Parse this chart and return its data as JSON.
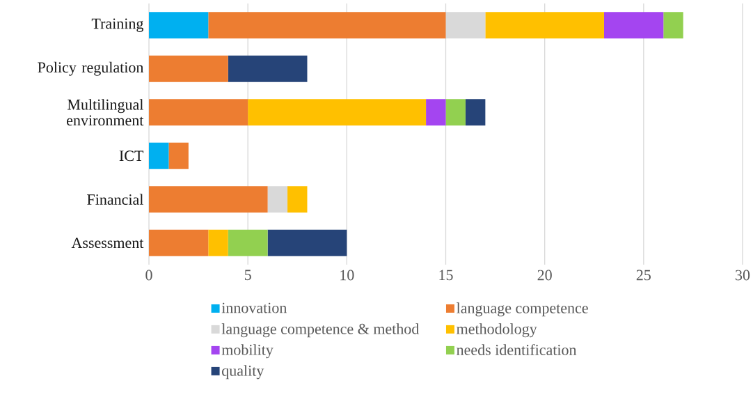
{
  "chart_data": {
    "type": "bar",
    "orientation": "horizontal",
    "stacked": true,
    "categories": [
      "Training",
      "Policy regulation",
      "Multilingual environment",
      "ICT",
      "Financial",
      "Assessment"
    ],
    "series": [
      {
        "name": "innovation",
        "color": "#00b0f0",
        "values": [
          3,
          0,
          0,
          1,
          0,
          0
        ]
      },
      {
        "name": "language competence",
        "color": "#ed7d31",
        "values": [
          12,
          4,
          5,
          1,
          6,
          3
        ]
      },
      {
        "name": "language competence & method",
        "color": "#d9d9d9",
        "values": [
          2,
          0,
          0,
          0,
          1,
          0
        ]
      },
      {
        "name": "methodology",
        "color": "#ffc000",
        "values": [
          6,
          0,
          9,
          0,
          1,
          1
        ]
      },
      {
        "name": "mobility",
        "color": "#a445f0",
        "values": [
          3,
          0,
          1,
          0,
          0,
          0
        ]
      },
      {
        "name": "needs identification",
        "color": "#92d050",
        "values": [
          1,
          0,
          1,
          0,
          0,
          2
        ]
      },
      {
        "name": "quality",
        "color": "#264478",
        "values": [
          0,
          4,
          1,
          0,
          0,
          4
        ]
      }
    ],
    "xlim": [
      0,
      30
    ],
    "xticks": [
      0,
      5,
      10,
      15,
      20,
      25,
      30
    ],
    "grid": "x",
    "legend": "bottom"
  }
}
